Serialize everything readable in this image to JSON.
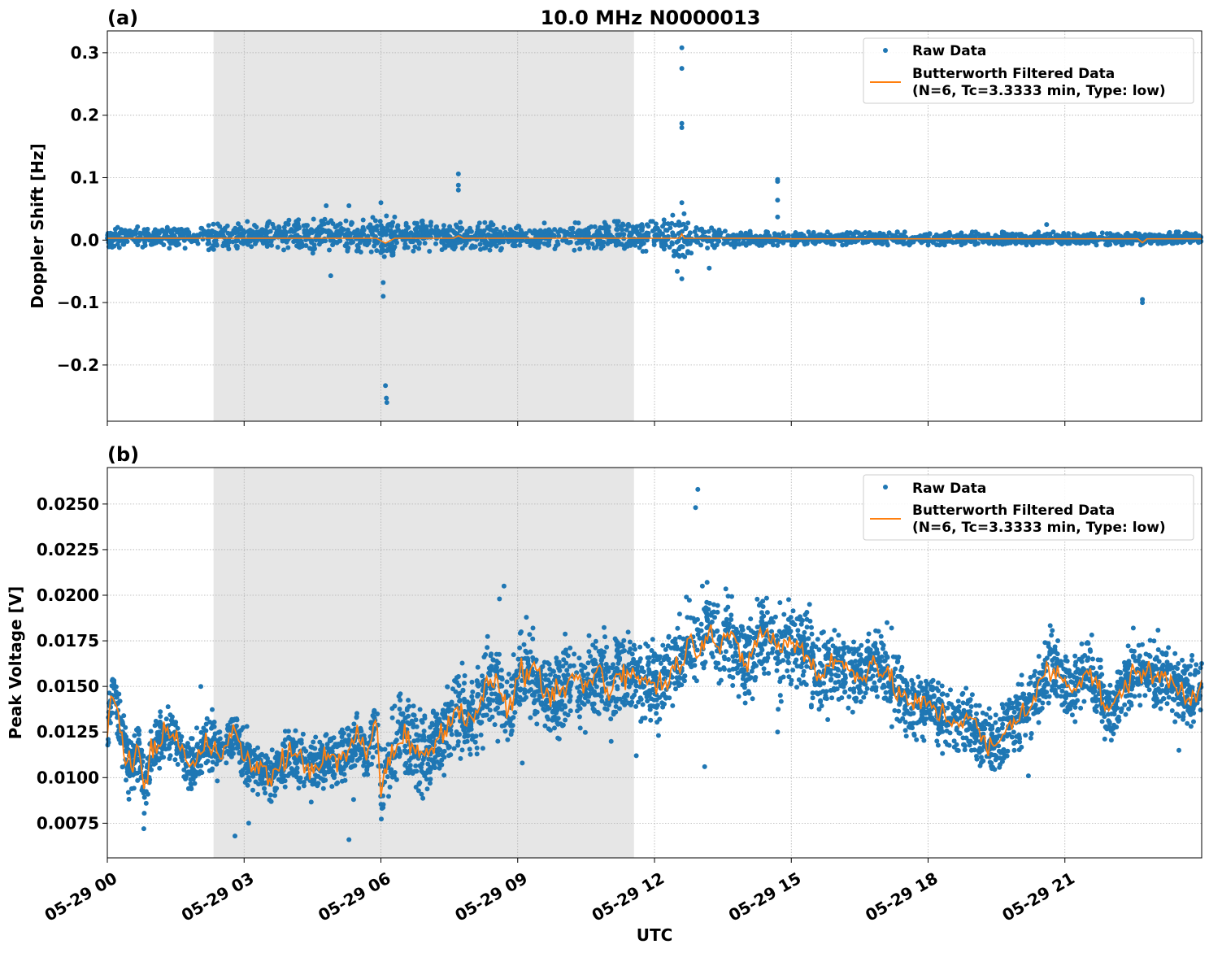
{
  "figure": {
    "title": "10.0 MHz N0000013",
    "xlabel": "UTC",
    "x_ticks": [
      "05-29 00",
      "05-29 03",
      "05-29 06",
      "05-29 09",
      "05-29 12",
      "05-29 15",
      "05-29 18",
      "05-29 21"
    ],
    "night_shading_hours": [
      2.33,
      11.55
    ],
    "colors": {
      "raw": "#1f77b4",
      "filtered": "#ff7f0e",
      "shading": "#e6e6e6",
      "grid": "#b0b0b0"
    }
  },
  "chart_data": [
    {
      "type": "scatter",
      "panel_label": "(a)",
      "ylabel": "Doppler Shift [Hz]",
      "xlim_hours": [
        0,
        24
      ],
      "ylim": [
        -0.29,
        0.335
      ],
      "yticks": [
        0.3,
        0.2,
        0.1,
        0.0,
        -0.1,
        -0.2
      ],
      "ytick_labels": [
        "0.3",
        "0.2",
        "0.1",
        "0.0",
        "−0.1",
        "−0.2"
      ],
      "grid": true,
      "legend": {
        "placement": "top-right",
        "entries": [
          "Raw Data",
          "Butterworth Filtered Data",
          "(N=6, Tc=3.3333 min, Type: low)"
        ]
      },
      "series": [
        {
          "name": "Raw Data",
          "kind": "scatter-band",
          "envelope_hours": [
            0,
            1,
            2,
            3,
            4,
            5,
            5.5,
            6,
            6.5,
            7,
            8,
            9,
            10,
            11,
            11.5,
            12,
            12.6,
            13,
            14,
            15,
            16,
            18,
            20,
            22,
            24
          ],
          "upper": [
            0.02,
            0.022,
            0.025,
            0.03,
            0.032,
            0.035,
            0.03,
            0.04,
            0.035,
            0.03,
            0.028,
            0.028,
            0.027,
            0.03,
            0.03,
            0.03,
            0.045,
            0.022,
            0.015,
            0.013,
            0.013,
            0.013,
            0.013,
            0.013,
            0.013
          ],
          "lower": [
            -0.012,
            -0.012,
            -0.015,
            -0.018,
            -0.02,
            -0.022,
            -0.018,
            -0.028,
            -0.02,
            -0.018,
            -0.016,
            -0.016,
            -0.016,
            -0.018,
            -0.018,
            -0.018,
            -0.035,
            -0.015,
            -0.01,
            -0.008,
            -0.008,
            -0.008,
            -0.008,
            -0.008,
            -0.008
          ],
          "outliers": [
            [
              4.8,
              0.055
            ],
            [
              5.3,
              0.055
            ],
            [
              4.9,
              -0.057
            ],
            [
              6.0,
              0.06
            ],
            [
              6.05,
              -0.068
            ],
            [
              6.05,
              -0.09
            ],
            [
              6.1,
              -0.233
            ],
            [
              6.12,
              -0.253
            ],
            [
              6.13,
              -0.26
            ],
            [
              7.7,
              0.106
            ],
            [
              7.7,
              0.088
            ],
            [
              7.7,
              0.08
            ],
            [
              12.6,
              0.308
            ],
            [
              12.6,
              0.275
            ],
            [
              12.6,
              0.187
            ],
            [
              12.6,
              0.18
            ],
            [
              12.6,
              0.06
            ],
            [
              12.6,
              -0.062
            ],
            [
              12.5,
              -0.05
            ],
            [
              13.2,
              -0.045
            ],
            [
              14.7,
              0.097
            ],
            [
              14.7,
              0.094
            ],
            [
              14.7,
              0.064
            ],
            [
              14.7,
              0.037
            ],
            [
              22.7,
              -0.095
            ],
            [
              22.7,
              -0.1
            ],
            [
              20.6,
              0.025
            ],
            [
              12.4,
              0.04
            ]
          ]
        },
        {
          "name": "Butterworth Filtered Data",
          "kind": "line",
          "x_hours": [
            0,
            2,
            4,
            5.9,
            6.1,
            6.3,
            7.6,
            7.7,
            7.8,
            12.55,
            12.6,
            12.65,
            14.7,
            14.75,
            22.6,
            22.7,
            22.8,
            24
          ],
          "values": [
            0.003,
            0.003,
            0.003,
            0.003,
            -0.005,
            0.003,
            0.003,
            0.007,
            0.003,
            0.003,
            0.01,
            0.003,
            0.003,
            0.002,
            0.002,
            -0.004,
            0.002,
            0.002
          ]
        }
      ]
    },
    {
      "type": "scatter",
      "panel_label": "(b)",
      "ylabel": "Peak Voltage [V]",
      "xlim_hours": [
        0,
        24
      ],
      "ylim": [
        0.0056,
        0.027
      ],
      "yticks": [
        0.025,
        0.0225,
        0.02,
        0.0175,
        0.015,
        0.0125,
        0.01,
        0.0075
      ],
      "ytick_labels": [
        "0.0250",
        "0.0225",
        "0.0200",
        "0.0175",
        "0.0150",
        "0.0125",
        "0.0100",
        "0.0075"
      ],
      "grid": true,
      "legend": {
        "placement": "top-right",
        "entries": [
          "Raw Data",
          "Butterworth Filtered Data",
          "(N=6, Tc=3.3333 min, Type: low)"
        ]
      },
      "series": [
        {
          "name": "Butterworth Filtered Data",
          "kind": "line",
          "x_hours": [
            0,
            0.1,
            0.2,
            0.35,
            0.5,
            0.7,
            0.8,
            0.9,
            1,
            1.3,
            1.6,
            1.8,
            2,
            2.2,
            2.4,
            2.6,
            2.8,
            3,
            3.3,
            3.6,
            4,
            4.4,
            4.8,
            5.2,
            5.5,
            5.7,
            5.9,
            6,
            6.2,
            6.5,
            6.8,
            7,
            7.3,
            7.6,
            8,
            8.2,
            8.4,
            8.6,
            8.8,
            9,
            9.3,
            9.6,
            9.9,
            10.2,
            10.5,
            10.8,
            11,
            11.2,
            11.5,
            11.8,
            12,
            12.3,
            12.6,
            12.8,
            13,
            13.2,
            13.4,
            13.6,
            13.8,
            14,
            14.2,
            14.5,
            14.7,
            15,
            15.3,
            15.6,
            15.9,
            16.2,
            16.5,
            16.8,
            17.1,
            17.4,
            17.7,
            18,
            18.3,
            18.6,
            18.9,
            19.2,
            19.4,
            19.6,
            19.8,
            20,
            20.3,
            20.6,
            20.9,
            21.2,
            21.5,
            21.8,
            22,
            22.3,
            22.6,
            22.9,
            23.2,
            23.5,
            23.7,
            24
          ],
          "values": [
            0.0125,
            0.0145,
            0.014,
            0.012,
            0.0105,
            0.0115,
            0.0095,
            0.0105,
            0.0115,
            0.0125,
            0.012,
            0.0105,
            0.011,
            0.012,
            0.0115,
            0.012,
            0.0125,
            0.011,
            0.0105,
            0.01,
            0.0115,
            0.0105,
            0.011,
            0.011,
            0.0125,
            0.011,
            0.0135,
            0.0095,
            0.011,
            0.0125,
            0.0115,
            0.011,
            0.0125,
            0.0135,
            0.0135,
            0.014,
            0.0155,
            0.015,
            0.0135,
            0.0155,
            0.016,
            0.0145,
            0.0145,
            0.0155,
            0.015,
            0.016,
            0.0145,
            0.016,
            0.0155,
            0.0155,
            0.015,
            0.0155,
            0.0165,
            0.0175,
            0.017,
            0.0185,
            0.017,
            0.018,
            0.017,
            0.016,
            0.0175,
            0.018,
            0.017,
            0.0175,
            0.017,
            0.0155,
            0.0165,
            0.016,
            0.0155,
            0.0165,
            0.0155,
            0.0145,
            0.014,
            0.014,
            0.0135,
            0.013,
            0.0135,
            0.012,
            0.0115,
            0.012,
            0.013,
            0.0135,
            0.014,
            0.016,
            0.0155,
            0.015,
            0.016,
            0.0145,
            0.0135,
            0.015,
            0.016,
            0.0155,
            0.0155,
            0.015,
            0.0145,
            0.015
          ]
        },
        {
          "name": "Raw Data",
          "kind": "scatter-band",
          "half_width": [
            0.0012,
            0.0018,
            0.0015
          ],
          "spikes": [
            [
              0.8,
              0.0072
            ],
            [
              2.05,
              0.015
            ],
            [
              2.8,
              0.0068
            ],
            [
              3.1,
              0.0075
            ],
            [
              5.3,
              0.0066
            ],
            [
              5.4,
              0.0088
            ],
            [
              8.7,
              0.0205
            ],
            [
              8.6,
              0.0198
            ],
            [
              9.1,
              0.0108
            ],
            [
              11.6,
              0.0112
            ],
            [
              12.95,
              0.0258
            ],
            [
              12.9,
              0.0248
            ],
            [
              13.05,
              0.0205
            ],
            [
              13.1,
              0.0106
            ],
            [
              14.7,
              0.0125
            ],
            [
              17.1,
              0.0185
            ],
            [
              17.2,
              0.0182
            ],
            [
              19.4,
              0.0105
            ],
            [
              20.2,
              0.0101
            ],
            [
              22.5,
              0.0182
            ],
            [
              23.5,
              0.0115
            ],
            [
              15.4,
              0.0195
            ]
          ]
        }
      ]
    }
  ]
}
